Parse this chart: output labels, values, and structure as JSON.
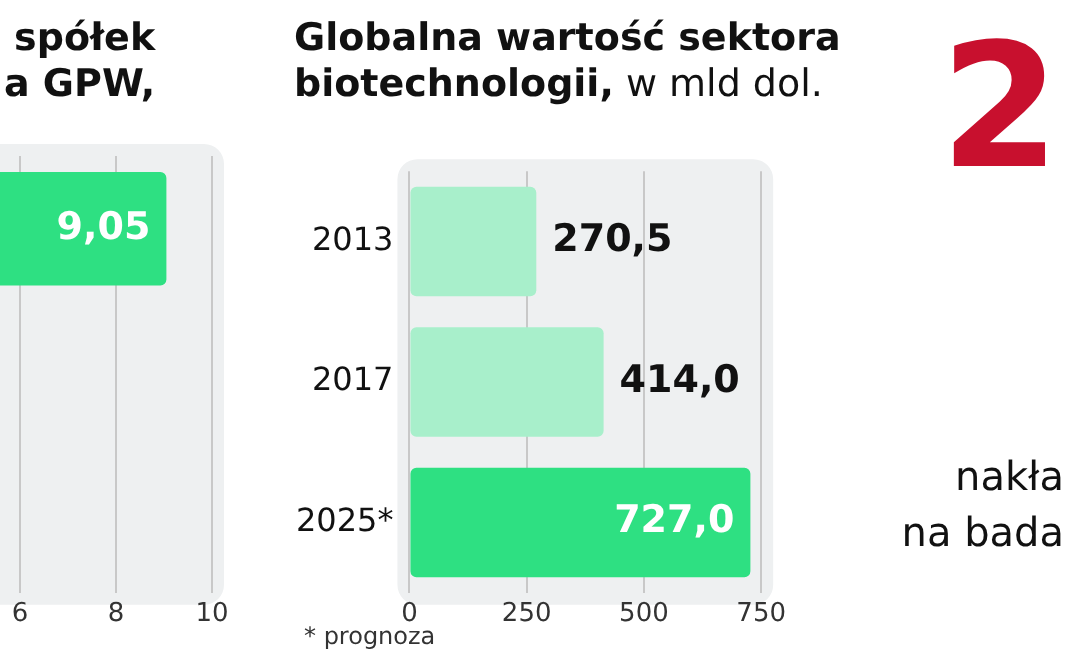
{
  "chart_data": [
    {
      "type": "bar",
      "title": "spółek\na GPW,",
      "orientation": "horizontal",
      "categories": [
        null,
        null,
        null
      ],
      "values": [
        9.05,
        null,
        null
      ],
      "value_labels": [
        "9,05",
        null,
        null
      ],
      "colors": [
        "#2ee082",
        "#2ee082",
        "#2ee082"
      ],
      "xlim": [
        0,
        10
      ],
      "xticks": [
        6,
        8,
        10
      ],
      "grid": "x"
    },
    {
      "type": "bar",
      "title": "Globalna wartość sektora\nbiotechnologii,",
      "subtitle": "w mld dol.",
      "orientation": "horizontal",
      "categories": [
        "2013",
        "2017",
        "2025*"
      ],
      "values": [
        270.5,
        414.0,
        727.0
      ],
      "value_labels": [
        "270,5",
        "414,0",
        "727,0"
      ],
      "colors": [
        "#a8efcb",
        "#a8efcb",
        "#2ee082"
      ],
      "xlim": [
        0,
        750
      ],
      "xticks": [
        0,
        250,
        500,
        750
      ],
      "grid": "x",
      "annotations": [
        "* prognoza"
      ]
    },
    {
      "type": "other",
      "title": "2",
      "annotations": [
        "nakła",
        "na bada"
      ]
    }
  ]
}
